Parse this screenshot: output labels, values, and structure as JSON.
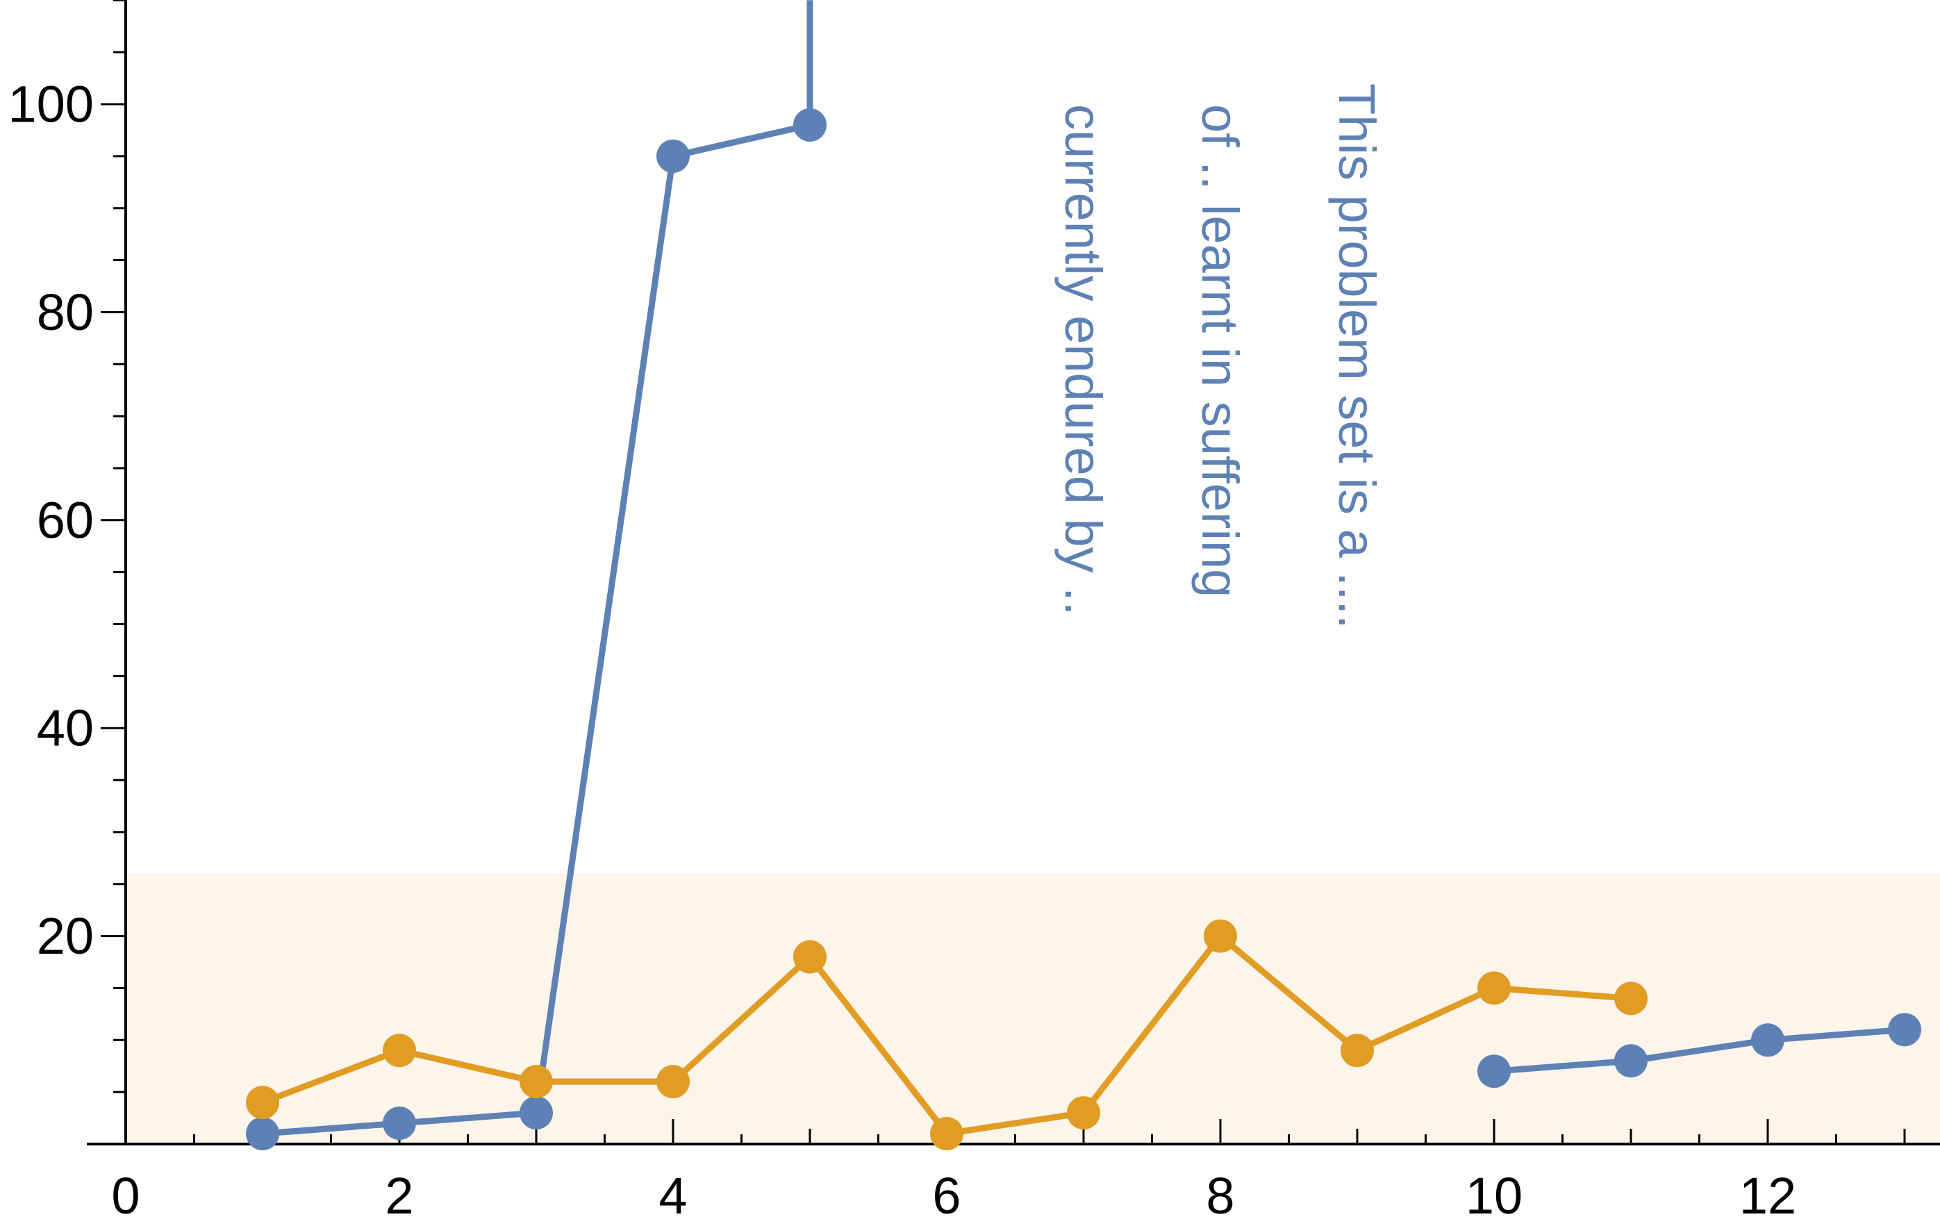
{
  "chart_data": {
    "type": "line",
    "title": "",
    "xlabel": "",
    "ylabel": "",
    "xlim": [
      0,
      13.2
    ],
    "ylim": [
      0,
      110
    ],
    "x_ticks": [
      0,
      2,
      4,
      6,
      8,
      10,
      12
    ],
    "x_tick_labels": [
      "0",
      "2",
      "4",
      "6",
      "8",
      "10",
      "12"
    ],
    "y_ticks": [
      20,
      40,
      60,
      80,
      100
    ],
    "y_tick_labels": [
      "20",
      "40",
      "60",
      "80",
      "100"
    ],
    "grid": false,
    "legend": "none",
    "shaded_band": {
      "y_from": 0,
      "y_to": 26,
      "color": "#FDF4EA"
    },
    "series": [
      {
        "color": "#5E81B5",
        "segments": [
          [
            [
              1,
              1
            ],
            [
              2,
              2
            ],
            [
              3,
              3
            ],
            [
              4,
              95
            ],
            [
              5,
              98
            ],
            [
              5,
              110
            ]
          ],
          [
            [
              10,
              7
            ],
            [
              11,
              8
            ],
            [
              12,
              10
            ],
            [
              13,
              11
            ]
          ]
        ]
      },
      {
        "color": "#E19C24",
        "segments": [
          [
            [
              1,
              4
            ],
            [
              2,
              9
            ],
            [
              3,
              6
            ],
            [
              4,
              6
            ],
            [
              5,
              18
            ],
            [
              6,
              1
            ],
            [
              7,
              3
            ],
            [
              8,
              20
            ],
            [
              9,
              9
            ],
            [
              10,
              15
            ],
            [
              11,
              14
            ]
          ]
        ]
      }
    ],
    "annotations": [
      {
        "text": "This problem set is a ....",
        "x": 9,
        "y_top": 102,
        "color": "#5E81B5"
      },
      {
        "text": "of .. learnt in suffering",
        "x": 8,
        "y_top": 100,
        "color": "#5E81B5"
      },
      {
        "text": "currently endured by ..",
        "x": 7,
        "y_top": 100,
        "color": "#5E81B5"
      }
    ]
  }
}
